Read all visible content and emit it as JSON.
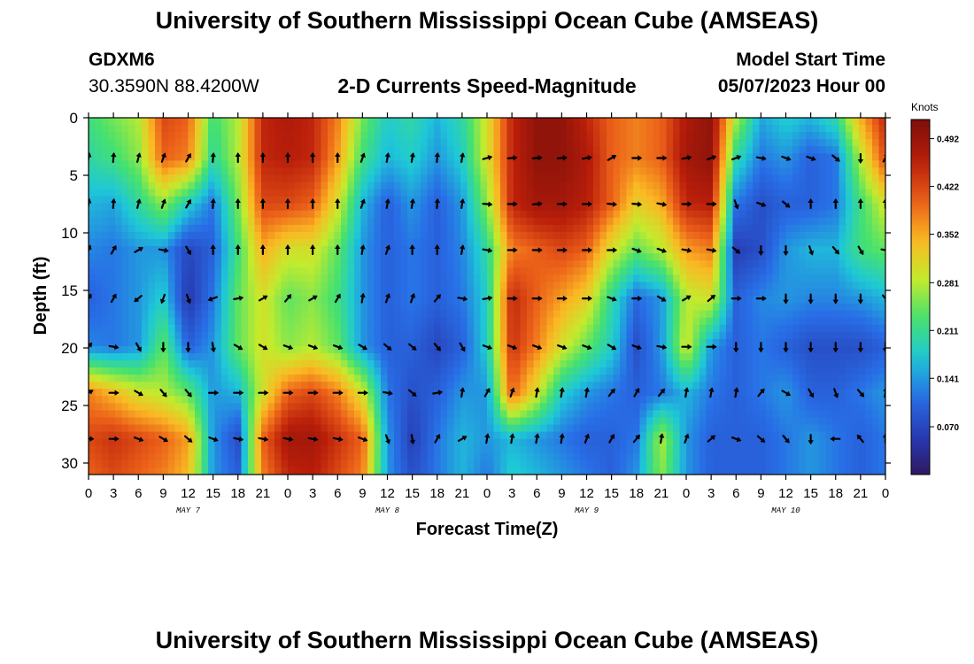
{
  "header": {
    "title": "University of Southern Mississippi Ocean Cube (AMSEAS)",
    "station_id": "GDXM6",
    "station_coords": "30.3590N  88.4200W",
    "plot_title": "2-D Currents Speed-Magnitude",
    "model_start_label": "Model Start Time",
    "model_start_value": "05/07/2023 Hour 00"
  },
  "footer": {
    "title": "University of Southern Mississippi Ocean Cube (AMSEAS)"
  },
  "chart_data": {
    "type": "heatmap",
    "title": "2-D Currents Speed-Magnitude",
    "xlabel": "Forecast Time(Z)",
    "ylabel": "Depth (ft)",
    "xlim": [
      0,
      96
    ],
    "ylim": [
      31,
      0
    ],
    "x_tick_values": [
      0,
      3,
      6,
      9,
      12,
      15,
      18,
      21,
      24,
      27,
      30,
      33,
      36,
      39,
      42,
      45,
      48,
      51,
      54,
      57,
      60,
      63,
      66,
      69,
      72,
      75,
      78,
      81,
      84,
      87,
      90,
      93,
      96
    ],
    "x_tick_labels": [
      "0",
      "3",
      "6",
      "9",
      "12",
      "15",
      "18",
      "21",
      "0",
      "3",
      "6",
      "9",
      "12",
      "15",
      "18",
      "21",
      "0",
      "3",
      "6",
      "9",
      "12",
      "15",
      "18",
      "21",
      "0",
      "3",
      "6",
      "9",
      "12",
      "15",
      "18",
      "21",
      "0"
    ],
    "y_tick_values": [
      0,
      5,
      10,
      15,
      20,
      25,
      30
    ],
    "y_tick_labels": [
      "0",
      "5",
      "10",
      "15",
      "20",
      "25",
      "30"
    ],
    "day_labels": [
      {
        "text": "MAY 7",
        "x": 12
      },
      {
        "text": "MAY 8",
        "x": 36
      },
      {
        "text": "MAY 9",
        "x": 60
      },
      {
        "text": "MAY 10",
        "x": 84
      }
    ],
    "colorbar": {
      "unit": "Knots",
      "min": 0.0,
      "max": 0.52,
      "tick_values": [
        0.07,
        0.141,
        0.211,
        0.281,
        0.352,
        0.422,
        0.492
      ],
      "tick_labels": [
        "0.070",
        "0.141",
        "0.211",
        "0.281",
        "0.352",
        "0.422",
        "0.492"
      ]
    },
    "depth_levels": [
      0,
      3.5,
      7.5,
      11.5,
      15.7,
      19.9,
      23.9,
      27.9,
      31
    ],
    "time_points": [
      0,
      3,
      6,
      9,
      12,
      15,
      18,
      21,
      24,
      27,
      30,
      33,
      36,
      39,
      42,
      45,
      48,
      51,
      54,
      57,
      60,
      63,
      66,
      69,
      72,
      75,
      78,
      81,
      84,
      87,
      90,
      93,
      96
    ],
    "speed_knots": [
      [
        0.22,
        0.25,
        0.28,
        0.42,
        0.4,
        0.22,
        0.28,
        0.45,
        0.47,
        0.45,
        0.38,
        0.25,
        0.18,
        0.2,
        0.16,
        0.2,
        0.3,
        0.45,
        0.5,
        0.5,
        0.45,
        0.4,
        0.38,
        0.4,
        0.47,
        0.5,
        0.28,
        0.15,
        0.18,
        0.16,
        0.2,
        0.35,
        0.45
      ],
      [
        0.2,
        0.22,
        0.26,
        0.4,
        0.38,
        0.2,
        0.28,
        0.45,
        0.46,
        0.45,
        0.36,
        0.22,
        0.16,
        0.18,
        0.14,
        0.18,
        0.3,
        0.45,
        0.5,
        0.5,
        0.47,
        0.4,
        0.38,
        0.4,
        0.48,
        0.5,
        0.2,
        0.12,
        0.14,
        0.1,
        0.12,
        0.28,
        0.42
      ],
      [
        0.16,
        0.15,
        0.2,
        0.26,
        0.18,
        0.12,
        0.25,
        0.42,
        0.42,
        0.4,
        0.3,
        0.16,
        0.1,
        0.14,
        0.1,
        0.14,
        0.26,
        0.45,
        0.48,
        0.48,
        0.46,
        0.4,
        0.32,
        0.35,
        0.45,
        0.46,
        0.12,
        0.08,
        0.1,
        0.1,
        0.12,
        0.22,
        0.3
      ],
      [
        0.13,
        0.12,
        0.14,
        0.14,
        0.07,
        0.1,
        0.22,
        0.35,
        0.3,
        0.3,
        0.24,
        0.14,
        0.1,
        0.12,
        0.1,
        0.13,
        0.2,
        0.38,
        0.4,
        0.42,
        0.4,
        0.3,
        0.24,
        0.28,
        0.36,
        0.38,
        0.06,
        0.08,
        0.14,
        0.16,
        0.16,
        0.22,
        0.24
      ],
      [
        0.1,
        0.12,
        0.14,
        0.18,
        0.05,
        0.12,
        0.24,
        0.3,
        0.24,
        0.26,
        0.22,
        0.14,
        0.1,
        0.12,
        0.1,
        0.12,
        0.18,
        0.45,
        0.4,
        0.36,
        0.32,
        0.2,
        0.11,
        0.14,
        0.28,
        0.3,
        0.1,
        0.13,
        0.14,
        0.13,
        0.13,
        0.14,
        0.16
      ],
      [
        0.13,
        0.12,
        0.14,
        0.24,
        0.1,
        0.14,
        0.24,
        0.3,
        0.26,
        0.28,
        0.24,
        0.14,
        0.1,
        0.1,
        0.07,
        0.1,
        0.18,
        0.44,
        0.38,
        0.3,
        0.24,
        0.18,
        0.08,
        0.14,
        0.3,
        0.14,
        0.1,
        0.12,
        0.1,
        0.08,
        0.08,
        0.08,
        0.1
      ],
      [
        0.38,
        0.34,
        0.3,
        0.28,
        0.24,
        0.14,
        0.16,
        0.3,
        0.4,
        0.42,
        0.38,
        0.3,
        0.12,
        0.08,
        0.1,
        0.14,
        0.14,
        0.4,
        0.3,
        0.18,
        0.14,
        0.12,
        0.1,
        0.12,
        0.16,
        0.12,
        0.1,
        0.12,
        0.14,
        0.1,
        0.1,
        0.12,
        0.14
      ],
      [
        0.42,
        0.44,
        0.42,
        0.4,
        0.36,
        0.14,
        0.08,
        0.4,
        0.48,
        0.48,
        0.44,
        0.4,
        0.14,
        0.06,
        0.12,
        0.16,
        0.14,
        0.16,
        0.14,
        0.12,
        0.1,
        0.1,
        0.12,
        0.28,
        0.14,
        0.1,
        0.1,
        0.1,
        0.12,
        0.14,
        0.12,
        0.1,
        0.12
      ],
      [
        0.4,
        0.42,
        0.4,
        0.38,
        0.34,
        0.14,
        0.1,
        0.38,
        0.45,
        0.46,
        0.42,
        0.38,
        0.14,
        0.08,
        0.12,
        0.16,
        0.12,
        0.18,
        0.16,
        0.14,
        0.12,
        0.1,
        0.14,
        0.26,
        0.14,
        0.1,
        0.1,
        0.1,
        0.12,
        0.14,
        0.12,
        0.1,
        0.12
      ]
    ],
    "vector_depths": [
      3.5,
      7.5,
      11.5,
      15.7,
      19.9,
      23.9,
      27.9
    ],
    "vector_times": [
      0,
      3,
      6,
      9,
      12,
      15,
      18,
      21,
      24,
      27,
      30,
      33,
      36,
      39,
      42,
      45,
      48,
      51,
      54,
      57,
      60,
      63,
      66,
      69,
      72,
      75,
      78,
      81,
      84,
      87,
      90,
      93,
      96
    ],
    "vector_direction_deg": [
      [
        10,
        5,
        15,
        20,
        30,
        5,
        0,
        0,
        0,
        0,
        0,
        20,
        10,
        10,
        5,
        10,
        75,
        85,
        85,
        85,
        80,
        60,
        90,
        90,
        80,
        70,
        70,
        100,
        110,
        110,
        130,
        180,
        30
      ],
      [
        10,
        5,
        15,
        20,
        30,
        5,
        0,
        0,
        0,
        0,
        0,
        20,
        10,
        10,
        5,
        10,
        95,
        90,
        85,
        90,
        90,
        95,
        95,
        100,
        90,
        90,
        160,
        110,
        130,
        0,
        0,
        0,
        0
      ],
      [
        20,
        30,
        60,
        100,
        150,
        0,
        0,
        0,
        0,
        0,
        0,
        10,
        20,
        0,
        0,
        10,
        100,
        90,
        90,
        90,
        90,
        90,
        110,
        110,
        100,
        100,
        130,
        180,
        180,
        160,
        140,
        150,
        100
      ],
      [
        30,
        30,
        230,
        200,
        160,
        250,
        80,
        60,
        40,
        60,
        30,
        10,
        20,
        20,
        40,
        100,
        80,
        90,
        90,
        90,
        90,
        110,
        90,
        120,
        60,
        50,
        90,
        90,
        180,
        180,
        180,
        180,
        140
      ],
      [
        40,
        100,
        150,
        180,
        180,
        170,
        120,
        120,
        110,
        110,
        110,
        120,
        130,
        130,
        140,
        150,
        110,
        110,
        110,
        110,
        110,
        120,
        110,
        100,
        90,
        90,
        180,
        180,
        180,
        180,
        180,
        180,
        180
      ],
      [
        60,
        90,
        120,
        140,
        140,
        90,
        90,
        90,
        90,
        90,
        90,
        90,
        100,
        130,
        80,
        10,
        30,
        20,
        10,
        10,
        10,
        40,
        30,
        40,
        10,
        10,
        10,
        40,
        120,
        150,
        160,
        140,
        10
      ],
      [
        90,
        90,
        110,
        120,
        130,
        110,
        100,
        100,
        100,
        100,
        100,
        110,
        160,
        170,
        30,
        60,
        10,
        10,
        10,
        10,
        20,
        30,
        40,
        10,
        20,
        50,
        110,
        130,
        140,
        180,
        270,
        320,
        0
      ]
    ]
  }
}
